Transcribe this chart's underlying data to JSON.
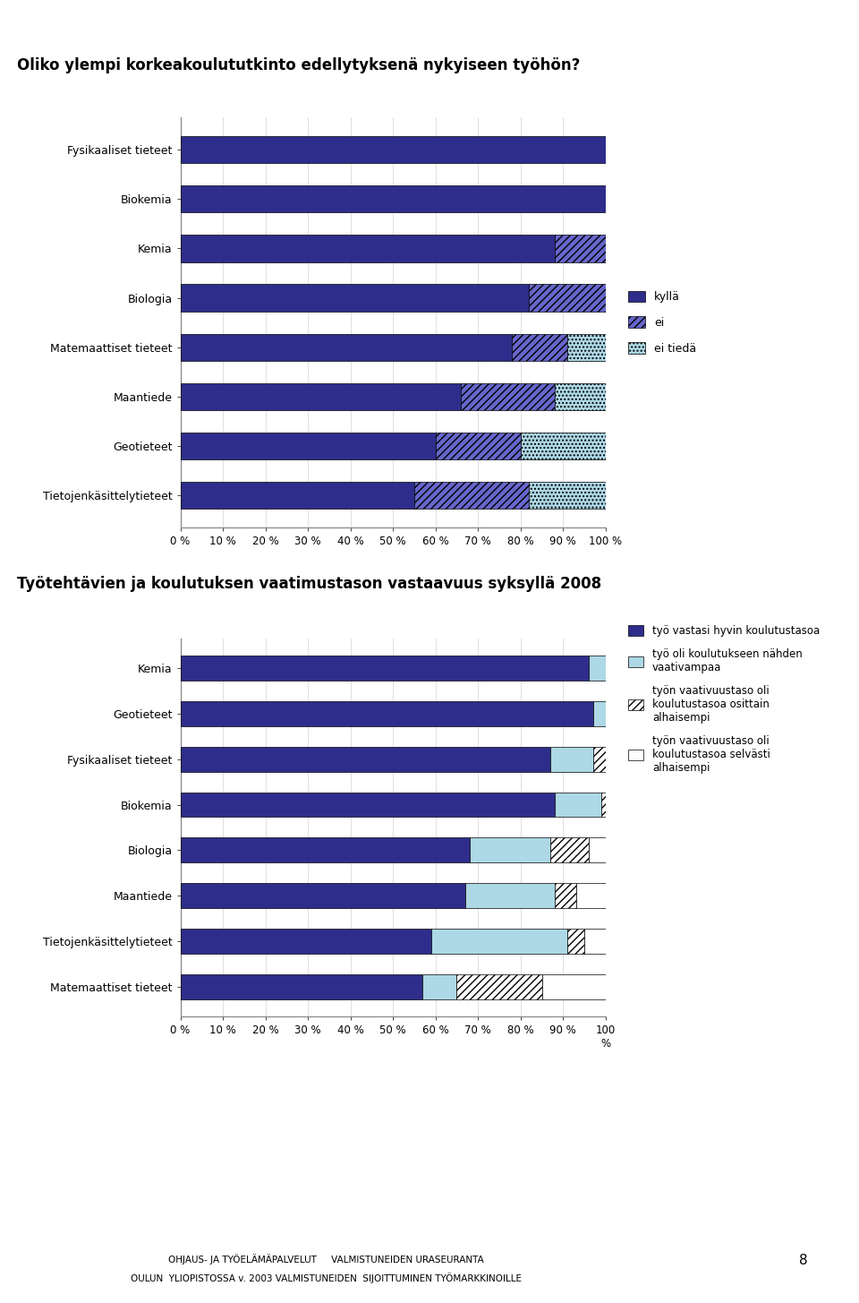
{
  "chart1_title": "Oliko ylempi korkeakoulututkinto edellytyksenä nykyiseen työhön?",
  "chart1_categories": [
    "Tietojenkäsittelytieteet",
    "Geotieteet",
    "Maantiede",
    "Matemaattiset tieteet",
    "Biologia",
    "Kemia",
    "Biokemia",
    "Fysikaaliset tieteet"
  ],
  "chart1_kylla": [
    55,
    60,
    66,
    78,
    82,
    88,
    100,
    100
  ],
  "chart1_ei": [
    27,
    20,
    22,
    13,
    18,
    12,
    0,
    0
  ],
  "chart1_eitied": [
    18,
    20,
    12,
    9,
    0,
    0,
    0,
    0
  ],
  "chart1_legend": [
    "kyllä",
    "ei",
    "ei tiedä"
  ],
  "chart1_color_kylla": "#2E2D8C",
  "chart1_color_ei": "#6666CC",
  "chart1_color_eitied": "#ADD8E6",
  "chart2_title": "Työtehtävien ja koulutuksen vaatimustason vastaavuus syksyllä 2008",
  "chart2_categories": [
    "Matemaattiset tieteet",
    "Tietojenkäsittelytieteet",
    "Maantiede",
    "Biologia",
    "Biokemia",
    "Fysikaaliset tieteet",
    "Geotieteet",
    "Kemia"
  ],
  "chart2_v1": [
    57,
    59,
    67,
    68,
    88,
    87,
    97,
    96
  ],
  "chart2_v2": [
    8,
    32,
    21,
    19,
    11,
    10,
    3,
    4
  ],
  "chart2_v3": [
    20,
    4,
    5,
    9,
    1,
    3,
    0,
    0
  ],
  "chart2_v4": [
    15,
    5,
    7,
    4,
    0,
    0,
    0,
    0
  ],
  "chart2_legend": [
    "työ vastasi hyvin koulutustasoa",
    "työ oli koulutukseen nähden\nvaativampaa",
    "työn vaativuustaso oli\nkoulutustasoa osittain\nalhaisempi",
    "työn vaativuustaso oli\nkoulutustasoa selvästi\nalhaisempi"
  ],
  "chart2_color_v1": "#2E2D8C",
  "chart2_color_v2": "#ADD8E6",
  "footer_line1": "OHJAUS- JA TYÖELÄMÄPALVELUT     VALMISTUNEIDEN URASEURANTA",
  "footer_line2": "OULUN  YLIOPISTOSSA v. 2003 VALMISTUNEIDEN  SIJOITTUMINEN TYÖMARKKINOILLE",
  "page_number": "8"
}
